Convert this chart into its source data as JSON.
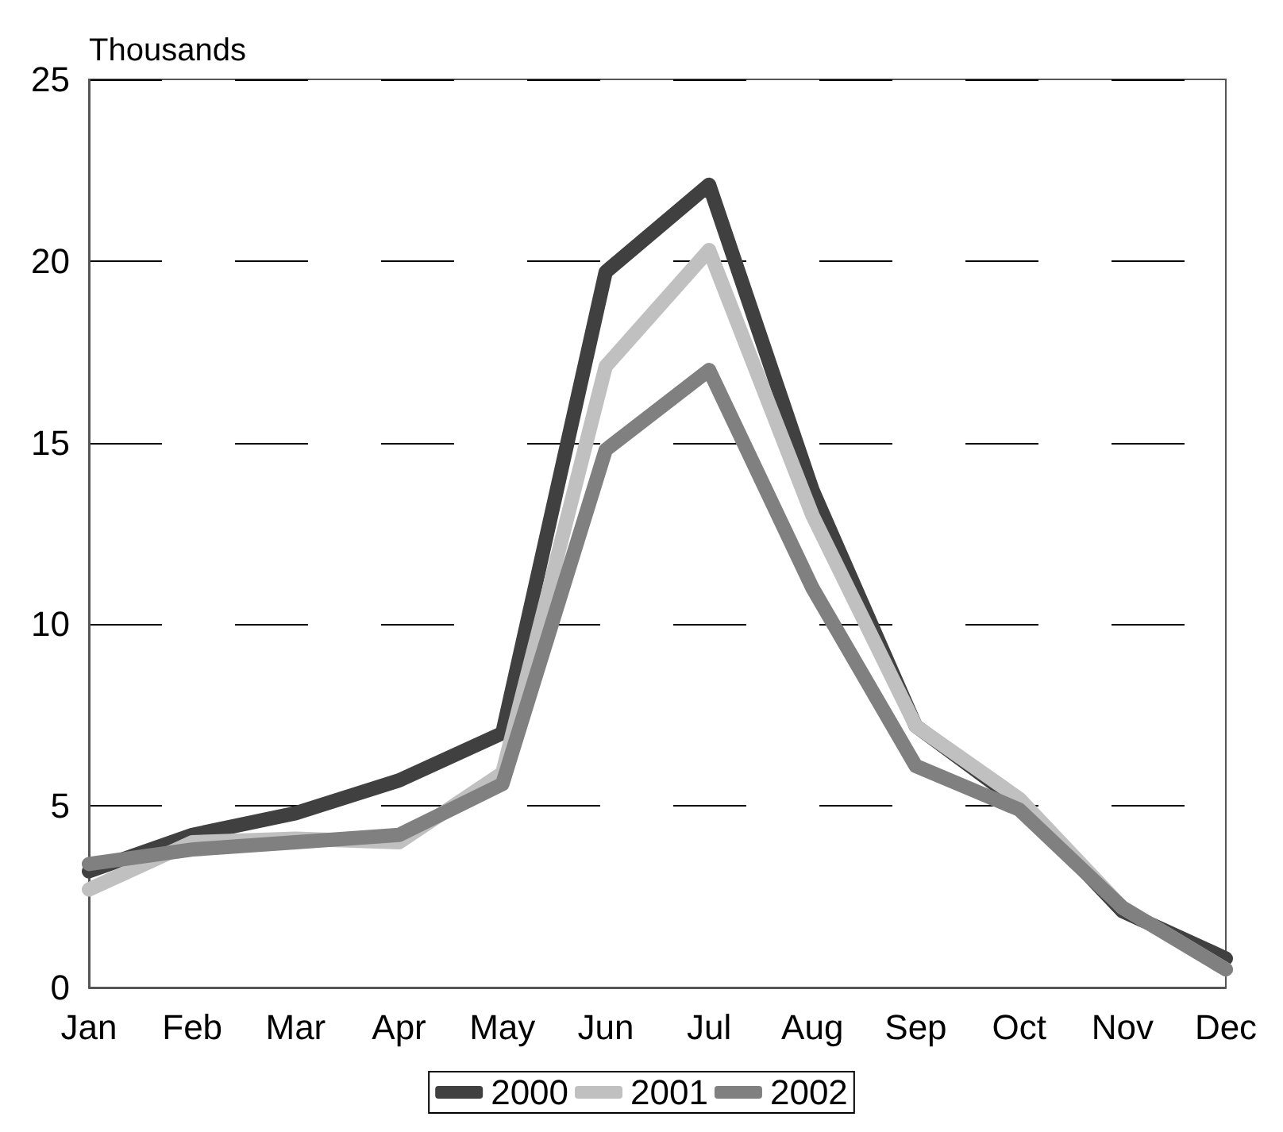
{
  "chart_data": {
    "type": "line",
    "ylabel": "Thousands",
    "categories": [
      "Jan",
      "Feb",
      "Mar",
      "Apr",
      "May",
      "Jun",
      "Jul",
      "Aug",
      "Sep",
      "Oct",
      "Nov",
      "Dec"
    ],
    "series": [
      {
        "name": "2000",
        "color": "#404040",
        "values": [
          3.2,
          4.2,
          4.8,
          5.7,
          7.0,
          19.7,
          22.1,
          13.7,
          7.2,
          5.1,
          2.1,
          0.8
        ]
      },
      {
        "name": "2001",
        "color": "#c0c0c0",
        "values": [
          2.7,
          4.0,
          4.1,
          4.0,
          5.9,
          17.1,
          20.3,
          13.0,
          7.2,
          5.2,
          2.2,
          0.5
        ]
      },
      {
        "name": "2002",
        "color": "#808080",
        "values": [
          3.4,
          3.8,
          4.0,
          4.2,
          5.6,
          14.8,
          17.0,
          11.0,
          6.1,
          4.9,
          2.2,
          0.5
        ]
      }
    ],
    "ylim": [
      0,
      25
    ],
    "yticks": [
      0,
      5,
      10,
      15,
      20,
      25
    ],
    "grid": "y",
    "legend": "bottom",
    "marker": "none",
    "line_style": "solid"
  }
}
